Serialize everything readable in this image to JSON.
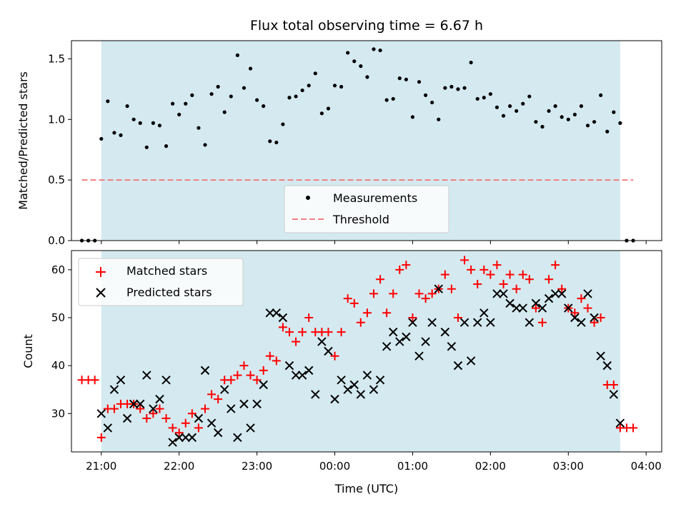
{
  "chart_data": [
    {
      "type": "scatter",
      "title": "Flux total observing time = 6.67 h",
      "ylabel": "Matched/Predicted stars",
      "xlim": [
        "20:37",
        "04:12"
      ],
      "ylim": [
        0,
        1.65
      ],
      "yticks": [
        0.0,
        0.5,
        1.0,
        1.5
      ],
      "ytick_labels": [
        "0.0",
        "0.5",
        "1.0",
        "1.5"
      ],
      "shaded_span": [
        "21:00",
        "23:40 (+1 day 03:40)"
      ],
      "shaded_span_times": [
        "21:00",
        "03:40"
      ],
      "shade_color": "#d4eaf0",
      "threshold": 0.5,
      "legend": {
        "position": "lower center",
        "entries": [
          "Measurements",
          "Threshold"
        ]
      },
      "series": [
        {
          "name": "Measurements",
          "color": "#000000",
          "marker": "dot",
          "x": [
            "20:45",
            "20:50",
            "20:55",
            "21:00",
            "21:05",
            "21:10",
            "21:15",
            "21:20",
            "21:25",
            "21:30",
            "21:35",
            "21:40",
            "21:45",
            "21:50",
            "21:55",
            "22:00",
            "22:05",
            "22:10",
            "22:15",
            "22:20",
            "22:25",
            "22:30",
            "22:35",
            "22:40",
            "22:45",
            "22:50",
            "22:55",
            "23:00",
            "23:05",
            "23:10",
            "23:15",
            "23:20",
            "23:25",
            "23:30",
            "23:35",
            "23:40",
            "23:45",
            "23:50",
            "23:55",
            "00:00",
            "00:05",
            "00:10",
            "00:15",
            "00:20",
            "00:25",
            "00:30",
            "00:35",
            "00:40",
            "00:45",
            "00:50",
            "00:55",
            "01:00",
            "01:05",
            "01:10",
            "01:15",
            "01:20",
            "01:25",
            "01:30",
            "01:35",
            "01:40",
            "01:45",
            "01:50",
            "01:55",
            "02:00",
            "02:05",
            "02:10",
            "02:15",
            "02:20",
            "02:25",
            "02:30",
            "02:35",
            "02:40",
            "02:45",
            "02:50",
            "02:55",
            "03:00",
            "03:05",
            "03:10",
            "03:15",
            "03:20",
            "03:25",
            "03:30",
            "03:35",
            "03:40",
            "03:45",
            "03:50"
          ],
          "y": [
            0,
            0,
            0,
            0.84,
            1.15,
            0.89,
            0.87,
            1.11,
            1.0,
            0.97,
            0.77,
            0.97,
            0.95,
            0.78,
            1.13,
            1.04,
            1.13,
            1.2,
            0.93,
            0.79,
            1.21,
            1.27,
            1.06,
            1.19,
            1.53,
            1.26,
            1.42,
            1.16,
            1.11,
            0.82,
            0.81,
            0.96,
            1.18,
            1.19,
            1.24,
            1.28,
            1.38,
            1.05,
            1.09,
            1.28,
            1.27,
            1.55,
            1.48,
            1.44,
            1.35,
            1.58,
            1.57,
            1.16,
            1.17,
            1.34,
            1.33,
            1.02,
            1.31,
            1.2,
            1.14,
            1.0,
            1.26,
            1.27,
            1.25,
            1.26,
            1.47,
            1.17,
            1.18,
            1.21,
            1.1,
            1.03,
            1.11,
            1.07,
            1.13,
            1.19,
            0.98,
            0.94,
            1.07,
            1.11,
            1.02,
            1.0,
            1.04,
            1.11,
            0.95,
            0.98,
            1.2,
            0.9,
            1.06,
            0.97,
            0,
            0
          ]
        },
        {
          "name": "Threshold",
          "color": "#f08080",
          "style": "dashed",
          "x": [
            "20:45",
            "03:50"
          ],
          "y": [
            0.5,
            0.5
          ]
        }
      ]
    },
    {
      "type": "scatter",
      "xlabel": "Time (UTC)",
      "ylabel": "Count",
      "xlim": [
        "20:37",
        "04:12"
      ],
      "ylim": [
        22,
        64
      ],
      "yticks": [
        30,
        40,
        50,
        60
      ],
      "ytick_labels": [
        "30",
        "40",
        "50",
        "60"
      ],
      "xticks": [
        "21:00",
        "22:00",
        "23:00",
        "00:00",
        "01:00",
        "02:00",
        "03:00",
        "04:00"
      ],
      "shaded_span_times": [
        "21:00",
        "03:40"
      ],
      "shade_color": "#d4eaf0",
      "legend": {
        "position": "upper left",
        "entries": [
          "Matched stars",
          "Predicted stars"
        ]
      },
      "series": [
        {
          "name": "Matched stars",
          "color": "#ff0000",
          "marker": "plus",
          "x": [
            "20:45",
            "20:50",
            "20:55",
            "21:00",
            "21:05",
            "21:10",
            "21:15",
            "21:20",
            "21:25",
            "21:30",
            "21:35",
            "21:40",
            "21:45",
            "21:50",
            "21:55",
            "22:00",
            "22:05",
            "22:10",
            "22:15",
            "22:20",
            "22:25",
            "22:30",
            "22:35",
            "22:40",
            "22:45",
            "22:50",
            "22:55",
            "23:00",
            "23:05",
            "23:10",
            "23:15",
            "23:20",
            "23:25",
            "23:30",
            "23:35",
            "23:40",
            "23:45",
            "23:50",
            "23:55",
            "00:00",
            "00:05",
            "00:10",
            "00:15",
            "00:20",
            "00:25",
            "00:30",
            "00:35",
            "00:40",
            "00:45",
            "00:50",
            "00:55",
            "01:00",
            "01:05",
            "01:10",
            "01:15",
            "01:20",
            "01:25",
            "01:30",
            "01:35",
            "01:40",
            "01:45",
            "01:50",
            "01:55",
            "02:00",
            "02:05",
            "02:10",
            "02:15",
            "02:20",
            "02:25",
            "02:30",
            "02:35",
            "02:40",
            "02:45",
            "02:50",
            "02:55",
            "03:00",
            "03:05",
            "03:10",
            "03:15",
            "03:20",
            "03:25",
            "03:30",
            "03:35",
            "03:40",
            "03:45",
            "03:50"
          ],
          "y": [
            37,
            37,
            37,
            25,
            31,
            31,
            32,
            32,
            32,
            31,
            29,
            30,
            31,
            29,
            27,
            26,
            28,
            30,
            27,
            31,
            34,
            33,
            37,
            37,
            38,
            40,
            38,
            37,
            39,
            42,
            41,
            48,
            47,
            45,
            47,
            50,
            47,
            47,
            47,
            42,
            47,
            54,
            53,
            49,
            51,
            55,
            58,
            51,
            55,
            60,
            61,
            50,
            55,
            54,
            55,
            56,
            59,
            56,
            50,
            62,
            60,
            57,
            60,
            59,
            61,
            57,
            59,
            56,
            59,
            58,
            52,
            49,
            58,
            61,
            56,
            52,
            51,
            54,
            52,
            49,
            50,
            36,
            36,
            27,
            27,
            27
          ]
        },
        {
          "name": "Predicted stars",
          "color": "#000000",
          "marker": "x",
          "x": [
            "21:00",
            "21:05",
            "21:10",
            "21:15",
            "21:20",
            "21:25",
            "21:30",
            "21:35",
            "21:40",
            "21:45",
            "21:50",
            "21:55",
            "22:00",
            "22:05",
            "22:10",
            "22:15",
            "22:20",
            "22:25",
            "22:30",
            "22:35",
            "22:40",
            "22:45",
            "22:50",
            "22:55",
            "23:00",
            "23:05",
            "23:10",
            "23:15",
            "23:20",
            "23:25",
            "23:30",
            "23:35",
            "23:40",
            "23:45",
            "23:50",
            "23:55",
            "00:00",
            "00:05",
            "00:10",
            "00:15",
            "00:20",
            "00:25",
            "00:30",
            "00:35",
            "00:40",
            "00:45",
            "00:50",
            "00:55",
            "01:00",
            "01:05",
            "01:10",
            "01:15",
            "01:20",
            "01:25",
            "01:30",
            "01:35",
            "01:40",
            "01:45",
            "01:50",
            "01:55",
            "02:00",
            "02:05",
            "02:10",
            "02:15",
            "02:20",
            "02:25",
            "02:30",
            "02:35",
            "02:40",
            "02:45",
            "02:50",
            "02:55",
            "03:00",
            "03:05",
            "03:10",
            "03:15",
            "03:20",
            "03:25",
            "03:30",
            "03:35",
            "03:40"
          ],
          "y": [
            30,
            27,
            35,
            37,
            29,
            32,
            32,
            38,
            31,
            33,
            37,
            24,
            25,
            25,
            25,
            29,
            39,
            28,
            26,
            35,
            31,
            25,
            32,
            27,
            32,
            36,
            51,
            51,
            50,
            40,
            38,
            38,
            39,
            34,
            45,
            43,
            33,
            37,
            35,
            36,
            34,
            38,
            35,
            37,
            44,
            47,
            45,
            46,
            49,
            42,
            45,
            49,
            56,
            47,
            44,
            40,
            49,
            41,
            49,
            51,
            49,
            55,
            55,
            53,
            52,
            52,
            49,
            53,
            52,
            54,
            55,
            55,
            52,
            50,
            49,
            55,
            50,
            42,
            40,
            34,
            28
          ]
        }
      ]
    }
  ]
}
